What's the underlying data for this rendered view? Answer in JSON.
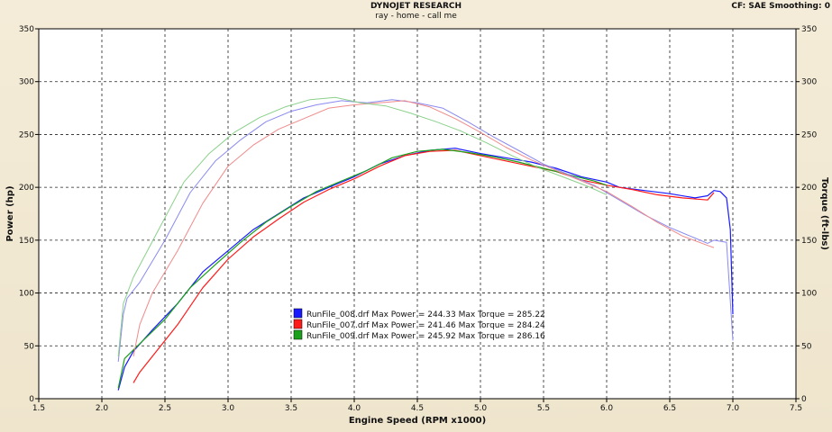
{
  "header": {
    "title": "DYNOJET RESEARCH",
    "subtitle": "ray - home - call me",
    "settings": "CF: SAE  Smoothing: 0"
  },
  "chart_data": {
    "type": "line",
    "xlabel": "Engine Speed (RPM x1000)",
    "ylabel_left": "Power (hp)",
    "ylabel_right": "Torque (ft-lbs)",
    "xlim": [
      1.5,
      7.5
    ],
    "ylim": [
      0,
      350
    ],
    "x_ticks": [
      "1.5",
      "2.0",
      "2.5",
      "3.0",
      "3.5",
      "4.0",
      "4.5",
      "5.0",
      "5.5",
      "6.0",
      "6.5",
      "7.0",
      "7.5"
    ],
    "y_ticks": [
      "0",
      "50",
      "100",
      "150",
      "200",
      "250",
      "300",
      "350"
    ],
    "grid": true,
    "legend_position": "center-left",
    "legend": [
      {
        "label": "RunFile_008.drf Max Power = 244.33 Max Torque = 285.22",
        "color": "#1a1aff"
      },
      {
        "label": "RunFile_007.drf Max Power = 241.46 Max Torque = 284.24",
        "color": "#ff1a1a"
      },
      {
        "label": "RunFile_009.drf Max Power = 245.92 Max Torque = 286.16",
        "color": "#1aa01a"
      }
    ],
    "series": [
      {
        "name": "RunFile_008.drf",
        "kind": "power",
        "color": "#1a1aff",
        "points": [
          [
            2.13,
            8
          ],
          [
            2.18,
            30
          ],
          [
            2.25,
            45
          ],
          [
            2.4,
            65
          ],
          [
            2.6,
            90
          ],
          [
            2.8,
            120
          ],
          [
            3.0,
            140
          ],
          [
            3.2,
            160
          ],
          [
            3.4,
            175
          ],
          [
            3.6,
            190
          ],
          [
            3.8,
            200
          ],
          [
            4.0,
            210
          ],
          [
            4.2,
            222
          ],
          [
            4.4,
            230
          ],
          [
            4.6,
            235
          ],
          [
            4.8,
            237
          ],
          [
            5.0,
            232
          ],
          [
            5.2,
            228
          ],
          [
            5.4,
            224
          ],
          [
            5.6,
            218
          ],
          [
            5.8,
            210
          ],
          [
            6.0,
            205
          ],
          [
            6.1,
            200
          ],
          [
            6.3,
            197
          ],
          [
            6.5,
            194
          ],
          [
            6.7,
            190
          ],
          [
            6.8,
            192
          ],
          [
            6.85,
            197
          ],
          [
            6.9,
            196
          ],
          [
            6.95,
            190
          ],
          [
            6.98,
            160
          ],
          [
            7.0,
            80
          ]
        ]
      },
      {
        "name": "RunFile_007.drf",
        "kind": "power",
        "color": "#ff1a1a",
        "points": [
          [
            2.25,
            15
          ],
          [
            2.3,
            25
          ],
          [
            2.4,
            40
          ],
          [
            2.6,
            70
          ],
          [
            2.8,
            105
          ],
          [
            3.0,
            132
          ],
          [
            3.2,
            153
          ],
          [
            3.4,
            170
          ],
          [
            3.6,
            186
          ],
          [
            3.8,
            198
          ],
          [
            4.0,
            208
          ],
          [
            4.2,
            220
          ],
          [
            4.4,
            230
          ],
          [
            4.6,
            234
          ],
          [
            4.8,
            235
          ],
          [
            5.0,
            230
          ],
          [
            5.2,
            225
          ],
          [
            5.4,
            220
          ],
          [
            5.6,
            215
          ],
          [
            5.8,
            207
          ],
          [
            6.0,
            202
          ],
          [
            6.2,
            198
          ],
          [
            6.4,
            193
          ],
          [
            6.6,
            190
          ],
          [
            6.8,
            188
          ],
          [
            6.85,
            195
          ]
        ]
      },
      {
        "name": "RunFile_009.drf",
        "kind": "power",
        "color": "#1aa01a",
        "points": [
          [
            2.13,
            10
          ],
          [
            2.18,
            38
          ],
          [
            2.3,
            52
          ],
          [
            2.5,
            75
          ],
          [
            2.7,
            105
          ],
          [
            2.9,
            127
          ],
          [
            3.1,
            148
          ],
          [
            3.3,
            167
          ],
          [
            3.5,
            182
          ],
          [
            3.7,
            196
          ],
          [
            3.9,
            206
          ],
          [
            4.1,
            216
          ],
          [
            4.3,
            228
          ],
          [
            4.5,
            234
          ],
          [
            4.7,
            236
          ],
          [
            4.9,
            233
          ],
          [
            5.1,
            229
          ],
          [
            5.3,
            224
          ],
          [
            5.5,
            218
          ],
          [
            5.7,
            212
          ],
          [
            5.9,
            206
          ],
          [
            6.0,
            202
          ]
        ]
      },
      {
        "name": "RunFile_008.drf",
        "kind": "torque",
        "color": "#8a8af0",
        "points": [
          [
            2.13,
            35
          ],
          [
            2.17,
            80
          ],
          [
            2.2,
            95
          ],
          [
            2.3,
            110
          ],
          [
            2.5,
            150
          ],
          [
            2.7,
            195
          ],
          [
            2.9,
            225
          ],
          [
            3.1,
            245
          ],
          [
            3.3,
            262
          ],
          [
            3.5,
            272
          ],
          [
            3.7,
            278
          ],
          [
            3.9,
            282
          ],
          [
            4.1,
            280
          ],
          [
            4.3,
            283
          ],
          [
            4.5,
            280
          ],
          [
            4.7,
            275
          ],
          [
            4.9,
            262
          ],
          [
            5.1,
            248
          ],
          [
            5.3,
            235
          ],
          [
            5.5,
            222
          ],
          [
            5.7,
            212
          ],
          [
            5.9,
            202
          ],
          [
            6.1,
            188
          ],
          [
            6.3,
            174
          ],
          [
            6.5,
            162
          ],
          [
            6.7,
            152
          ],
          [
            6.8,
            147
          ],
          [
            6.85,
            150
          ],
          [
            6.95,
            148
          ],
          [
            7.0,
            55
          ]
        ]
      },
      {
        "name": "RunFile_007.drf",
        "kind": "torque",
        "color": "#f08a8a",
        "points": [
          [
            2.25,
            40
          ],
          [
            2.3,
            70
          ],
          [
            2.4,
            100
          ],
          [
            2.6,
            140
          ],
          [
            2.8,
            185
          ],
          [
            3.0,
            220
          ],
          [
            3.2,
            240
          ],
          [
            3.4,
            255
          ],
          [
            3.6,
            265
          ],
          [
            3.8,
            275
          ],
          [
            4.0,
            278
          ],
          [
            4.2,
            280
          ],
          [
            4.4,
            282
          ],
          [
            4.6,
            276
          ],
          [
            4.8,
            265
          ],
          [
            5.0,
            252
          ],
          [
            5.2,
            238
          ],
          [
            5.4,
            226
          ],
          [
            5.6,
            216
          ],
          [
            5.8,
            206
          ],
          [
            6.0,
            196
          ],
          [
            6.2,
            182
          ],
          [
            6.4,
            167
          ],
          [
            6.6,
            154
          ],
          [
            6.8,
            145
          ],
          [
            6.85,
            143
          ]
        ]
      },
      {
        "name": "RunFile_009.drf",
        "kind": "torque",
        "color": "#8ad08a",
        "points": [
          [
            2.13,
            40
          ],
          [
            2.17,
            90
          ],
          [
            2.25,
            115
          ],
          [
            2.45,
            160
          ],
          [
            2.65,
            205
          ],
          [
            2.85,
            232
          ],
          [
            3.05,
            252
          ],
          [
            3.25,
            266
          ],
          [
            3.45,
            276
          ],
          [
            3.65,
            283
          ],
          [
            3.85,
            285
          ],
          [
            4.05,
            280
          ],
          [
            4.25,
            277
          ],
          [
            4.45,
            270
          ],
          [
            4.65,
            262
          ],
          [
            4.85,
            253
          ],
          [
            5.05,
            242
          ],
          [
            5.25,
            230
          ],
          [
            5.45,
            219
          ],
          [
            5.65,
            210
          ],
          [
            5.85,
            201
          ],
          [
            6.0,
            193
          ]
        ]
      }
    ]
  }
}
